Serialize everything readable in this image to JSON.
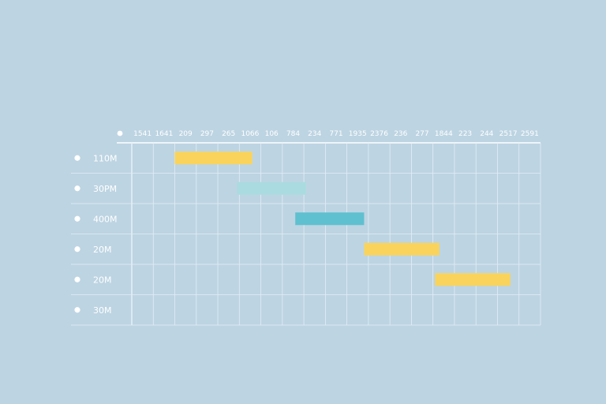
{
  "chart_data": {
    "type": "gantt",
    "title": "",
    "xlabel": "",
    "ylabel": "",
    "grid": true,
    "column_labels": [
      "1541",
      "1641",
      "209",
      "297",
      "265",
      "1066",
      "106",
      "784",
      "234",
      "771",
      "1935",
      "2376",
      "236",
      "277",
      "1844",
      "223",
      "244",
      "2517",
      "2591"
    ],
    "rows": [
      {
        "label": "110M",
        "start_col": 2,
        "end_col": 5.6,
        "color": "#f9d35c"
      },
      {
        "label": "30PM",
        "start_col": 4.9,
        "end_col": 8.1,
        "color": "#aadbe0"
      },
      {
        "label": "400M",
        "start_col": 7.6,
        "end_col": 10.8,
        "color": "#5fc0cf"
      },
      {
        "label": "20M",
        "start_col": 10.8,
        "end_col": 14.3,
        "color": "#f9d35c"
      },
      {
        "label": "20M",
        "start_col": 14.1,
        "end_col": 17.6,
        "color": "#f9d35c"
      },
      {
        "label": "30M",
        "start_col": null,
        "end_col": null,
        "color": null
      }
    ]
  }
}
